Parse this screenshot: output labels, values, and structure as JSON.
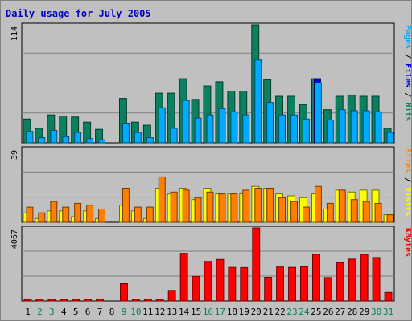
{
  "chart_data": {
    "type": "bar",
    "title": "Daily usage for July 2005",
    "categories": [
      "1",
      "2",
      "3",
      "4",
      "5",
      "6",
      "7",
      "8",
      "9",
      "10",
      "11",
      "12",
      "13",
      "14",
      "15",
      "16",
      "17",
      "18",
      "19",
      "20",
      "21",
      "22",
      "23",
      "24",
      "25",
      "26",
      "27",
      "28",
      "29",
      "30",
      "31"
    ],
    "weekend_days": [
      "2",
      "3",
      "9",
      "10",
      "16",
      "17",
      "23",
      "24",
      "30",
      "31"
    ],
    "panels": [
      {
        "name": "top",
        "ymax_label": "114",
        "ymax": 114,
        "series": [
          {
            "name": "Hits",
            "color": "#0a8060",
            "values": [
              23,
              14,
              27,
              26,
              25,
              20,
              13,
              0,
              43,
              20,
              17,
              48,
              48,
              62,
              42,
              55,
              59,
              50,
              50,
              114,
              61,
              45,
              45,
              37,
              62,
              32,
              45,
              46,
              45,
              45,
              14
            ]
          },
          {
            "name": "Files",
            "color": "#0000e0",
            "values": [
              0,
              0,
              0,
              0,
              0,
              0,
              0,
              0,
              0,
              0,
              0,
              0,
              0,
              0,
              0,
              0,
              0,
              0,
              0,
              0,
              0,
              0,
              0,
              0,
              62,
              0,
              0,
              0,
              0,
              0,
              0
            ]
          },
          {
            "name": "Pages",
            "color": "#00aaff",
            "values": [
              11,
              5,
              12,
              6,
              10,
              4,
              3,
              0,
              19,
              10,
              5,
              34,
              14,
              41,
              24,
              27,
              33,
              30,
              27,
              80,
              39,
              27,
              27,
              23,
              58,
              22,
              32,
              31,
              31,
              30,
              10
            ]
          }
        ],
        "legend": [
          {
            "text": "Pages",
            "color": "#00aaff"
          },
          {
            "text": " / ",
            "color": "#000000"
          },
          {
            "text": "Files",
            "color": "#0000e0"
          },
          {
            "text": " / ",
            "color": "#000000"
          },
          {
            "text": "Hits",
            "color": "#0a8060"
          }
        ]
      },
      {
        "name": "middle",
        "ymax_label": "39",
        "ymax": 39,
        "series": [
          {
            "name": "Visits",
            "color": "#ffff00",
            "values": [
              5,
              2,
              6,
              6,
              3,
              6,
              2,
              0,
              9,
              6,
              2,
              18,
              15,
              18,
              12,
              18,
              15,
              15,
              15,
              19,
              18,
              15,
              14,
              13,
              15,
              7,
              17,
              16,
              17,
              17,
              4
            ]
          },
          {
            "name": "Sites",
            "color": "#ff8000",
            "values": [
              8,
              5,
              11,
              8,
              10,
              9,
              7,
              0,
              18,
              8,
              8,
              24,
              16,
              17,
              13,
              16,
              15,
              15,
              17,
              18,
              18,
              13,
              11,
              8,
              19,
              10,
              17,
              12,
              11,
              10,
              4
            ]
          }
        ],
        "legend": [
          {
            "text": "Sites",
            "color": "#ff8000"
          },
          {
            "text": " / ",
            "color": "#000000"
          },
          {
            "text": "Visits",
            "color": "#ffff00"
          }
        ]
      },
      {
        "name": "bottom",
        "ymax_label": "4067",
        "ymax": 4067,
        "series": [
          {
            "name": "KBytes",
            "color": "#ff0000",
            "values": [
              15,
              15,
              15,
              15,
              15,
              15,
              15,
              0,
              960,
              20,
              100,
              20,
              590,
              2650,
              1370,
              2200,
              2310,
              1870,
              1860,
              4067,
              1320,
              1890,
              1870,
              1910,
              2600,
              1300,
              2130,
              2330,
              2590,
              2420,
              480
            ]
          }
        ],
        "legend": [
          {
            "text": "KBytes",
            "color": "#ff0000"
          }
        ]
      }
    ],
    "colors": {
      "plot_bg": "#c0c0c0",
      "grid": "#808080",
      "title": "#0000c0",
      "weekend_label": "#00805a",
      "weekday_label": "#000000"
    }
  }
}
